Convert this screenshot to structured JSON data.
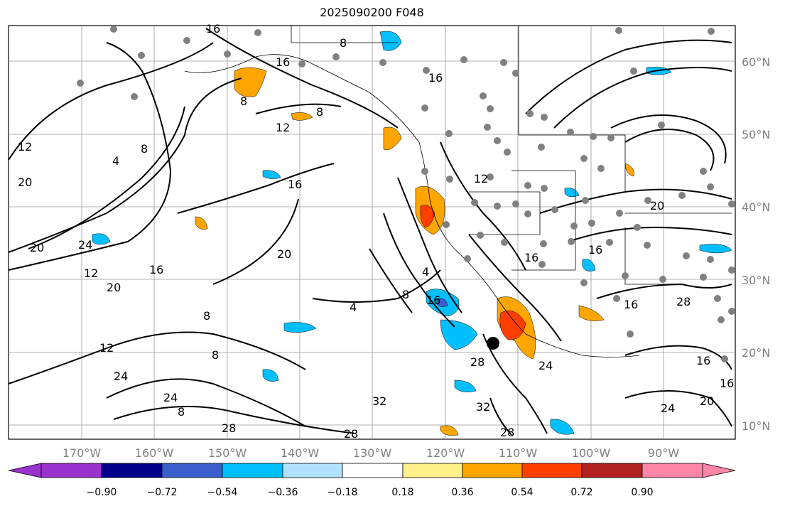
{
  "title": "2025090200 F048",
  "map": {
    "lat_labels": [
      "60°N",
      "50°N",
      "40°N",
      "30°N",
      "20°N",
      "10°N"
    ],
    "lon_labels": [
      "170°W",
      "160°W",
      "150°W",
      "140°W",
      "130°W",
      "120°W",
      "110°W",
      "100°W",
      "90°W"
    ],
    "contour_labels": [
      "16",
      "8",
      "16",
      "16",
      "8",
      "12",
      "8",
      "12",
      "20",
      "8",
      "4",
      "16",
      "12",
      "20",
      "24",
      "12",
      "16",
      "20",
      "20",
      "8",
      "4",
      "8",
      "16",
      "4",
      "8",
      "16",
      "16",
      "20",
      "28",
      "16",
      "12",
      "24",
      "8",
      "28",
      "32",
      "24",
      "16",
      "20",
      "24",
      "32",
      "28",
      "28",
      "24",
      "16",
      "28"
    ],
    "colorbar": {
      "tick_labels": [
        "−0.90",
        "−0.72",
        "−0.54",
        "−0.36",
        "−0.18",
        "0.18",
        "0.36",
        "0.54",
        "0.72",
        "0.90"
      ],
      "colors": [
        "#9a32cd",
        "#00008b",
        "#3a5fcd",
        "#00bfff",
        "#b0e2ff",
        "#ffffff",
        "#fff08a",
        "#ffa500",
        "#ff3e00",
        "#b22222",
        "#ff85a8"
      ]
    },
    "fill_colors": {
      "neg_light": "#00bfff",
      "neg_mid": "#3a5fcd",
      "pos_light": "#ffa500",
      "pos_mid": "#ff3e00",
      "pos_yellow": "#fff08a"
    }
  }
}
